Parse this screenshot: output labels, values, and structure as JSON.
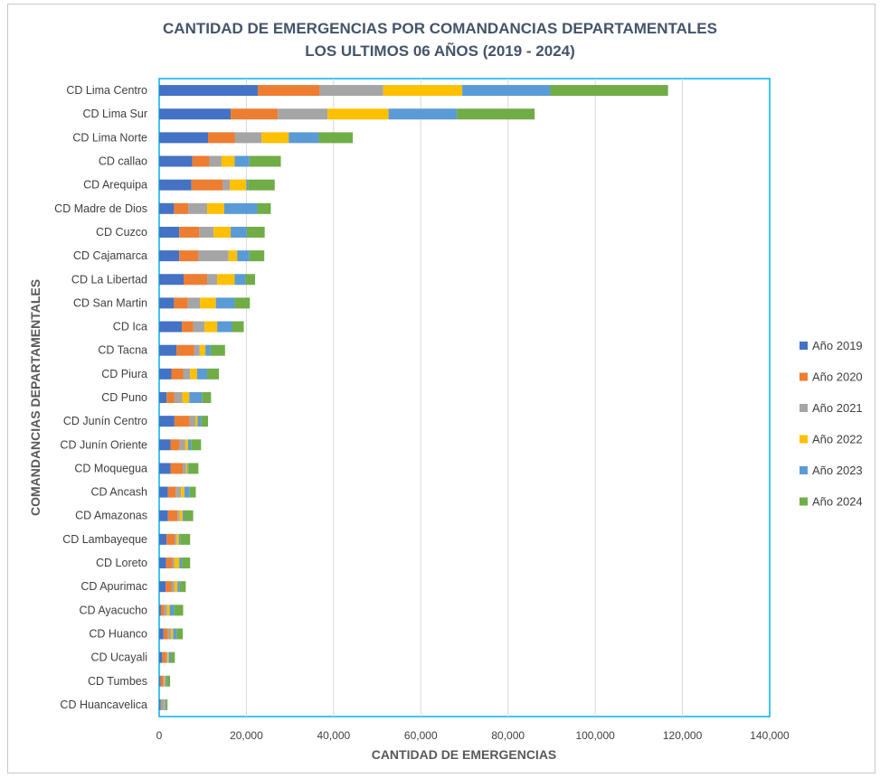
{
  "chart_data": {
    "type": "bar",
    "orientation": "horizontal",
    "stacked": true,
    "title": "CANTIDAD DE EMERGENCIAS POR COMANDANCIAS DEPARTAMENTALES",
    "subtitle": "LOS ULTIMOS 06 AÑOS (2019 - 2024)",
    "xlabel": "CANTIDAD DE EMERGENCIAS",
    "ylabel": "COMANDANCIAS DEPARTAMENTALES",
    "xlim": [
      0,
      140000
    ],
    "xticks": [
      0,
      20000,
      40000,
      60000,
      80000,
      100000,
      120000,
      140000
    ],
    "xtick_labels": [
      "0",
      "20,000",
      "40,000",
      "60,000",
      "80,000",
      "100,000",
      "120,000",
      "140,000"
    ],
    "grid": "vertical",
    "legend_position": "right",
    "categories": [
      "CD Lima Centro",
      "CD Lima Sur",
      "CD Lima Norte",
      "CD callao",
      "CD Arequipa",
      "CD Madre de Dios",
      "CD Cuzco",
      "CD Cajamarca",
      "CD La Libertad",
      "CD San Martin",
      "CD Ica",
      "CD Tacna",
      "CD Piura",
      "CD Puno",
      "CD Junín Centro",
      "CD Junín Oriente",
      "CD Moquegua",
      "CD Ancash",
      "CD Amazonas",
      "CD Lambayeque",
      "CD Loreto",
      "CD Apurimac",
      "CD Ayacucho",
      "CD Huanco",
      "CD Ucayali",
      "CD Tumbes",
      "CD Huancavelica"
    ],
    "series": [
      {
        "name": "Año 2019",
        "color": "#4472c4",
        "values": [
          22600,
          16400,
          11200,
          7600,
          7400,
          3400,
          4600,
          4600,
          5600,
          3400,
          5200,
          4000,
          2800,
          1700,
          3500,
          2600,
          2600,
          2000,
          2000,
          1700,
          1600,
          1500,
          400,
          1000,
          700,
          300,
          300
        ]
      },
      {
        "name": "Año 2020",
        "color": "#ed7d31",
        "values": [
          14200,
          10800,
          6200,
          3900,
          7200,
          3300,
          4600,
          4400,
          5400,
          3200,
          2600,
          4000,
          2700,
          1800,
          3500,
          2100,
          2800,
          1800,
          2200,
          1900,
          1400,
          1300,
          800,
          1000,
          900,
          700,
          100
        ]
      },
      {
        "name": "Año 2021",
        "color": "#a5a5a5",
        "values": [
          14600,
          11400,
          6100,
          2800,
          1600,
          4300,
          3300,
          6900,
          2300,
          2800,
          2600,
          1300,
          1600,
          1800,
          1300,
          1300,
          800,
          1200,
          500,
          400,
          500,
          700,
          600,
          700,
          300,
          200,
          800
        ]
      },
      {
        "name": "Año 2022",
        "color": "#ffc000",
        "values": [
          18100,
          14000,
          6200,
          3000,
          3800,
          3900,
          3900,
          2000,
          4000,
          3600,
          2900,
          1300,
          1600,
          1600,
          500,
          600,
          300,
          800,
          700,
          500,
          1100,
          700,
          600,
          500,
          300,
          200,
          100
        ]
      },
      {
        "name": "Año 2023",
        "color": "#5b9bd5",
        "values": [
          20200,
          15700,
          6900,
          3400,
          400,
          7600,
          3700,
          2800,
          2500,
          4300,
          3400,
          1200,
          2300,
          2900,
          800,
          700,
          200,
          1200,
          400,
          300,
          600,
          500,
          1000,
          800,
          500,
          300,
          200
        ]
      },
      {
        "name": "Año 2024",
        "color": "#70ad47",
        "values": [
          27000,
          17800,
          7800,
          7200,
          6100,
          3100,
          4100,
          3400,
          2200,
          3500,
          2700,
          3300,
          2700,
          2100,
          1600,
          2300,
          2300,
          1400,
          2000,
          2300,
          1900,
          1400,
          2100,
          1400,
          900,
          800,
          400
        ]
      }
    ]
  }
}
